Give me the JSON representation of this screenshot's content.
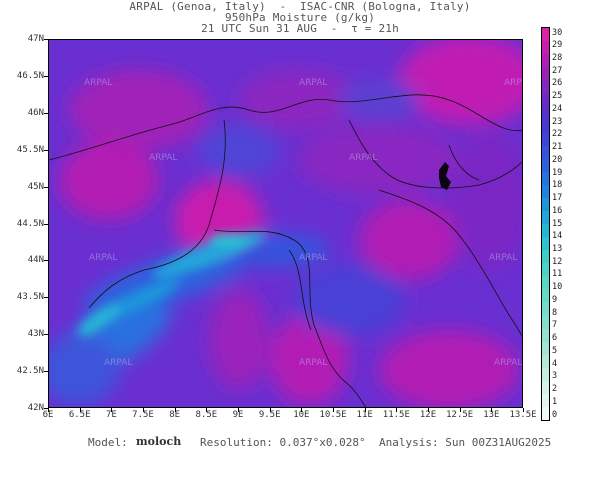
{
  "header": {
    "line1": "ARPAL (Genoa, Italy)  -  ISAC-CNR (Bologna, Italy)",
    "line2": "950hPa Moisture (g/kg)",
    "line3": "21 UTC Sun 31 AUG  -  τ = 21h"
  },
  "map": {
    "lat_ticks": [
      "47N",
      "46.5N",
      "46N",
      "45.5N",
      "45N",
      "44.5N",
      "44N",
      "43.5N",
      "43N",
      "42.5N",
      "42N"
    ],
    "lon_ticks": [
      "6E",
      "6.5E",
      "7E",
      "7.5E",
      "8E",
      "8.5E",
      "9E",
      "9.5E",
      "10E",
      "10.5E",
      "11E",
      "11.5E",
      "12E",
      "12.5E",
      "13E",
      "13.5E"
    ],
    "watermark": "ARPAL"
  },
  "colorbar": {
    "labels": [
      "30",
      "29",
      "28",
      "27",
      "26",
      "25",
      "24",
      "23",
      "22",
      "21",
      "20",
      "19",
      "18",
      "17",
      "16",
      "15",
      "14",
      "13",
      "12",
      "11",
      "10",
      "9",
      "8",
      "7",
      "6",
      "5",
      "4",
      "3",
      "2",
      "1",
      "0"
    ],
    "colors": [
      "#dd20a8",
      "#c81eae",
      "#b11fb4",
      "#9a22bb",
      "#8426c2",
      "#6e2ac9",
      "#5a2fd0",
      "#4a38d5",
      "#3e45d9",
      "#3553dc",
      "#2d62de",
      "#2672df",
      "#2083df",
      "#1f94dd",
      "#20a6da",
      "#25b6d5",
      "#2fc3cf",
      "#3dcdc9",
      "#4ad3c6",
      "#58d7c5",
      "#66dac6",
      "#74dcc8",
      "#83dfcb",
      "#93e2cf",
      "#a4e5d4",
      "#b5e9da",
      "#c6ede1",
      "#d6f1e8",
      "#e5f5ef",
      "#f2faf7"
    ]
  },
  "footer": {
    "model_label": "Model:",
    "model_value": "moloch",
    "resolution": "Resolution: 0.037°x0.028°",
    "analysis": "Analysis: Sun 00Z31AUG2025"
  }
}
